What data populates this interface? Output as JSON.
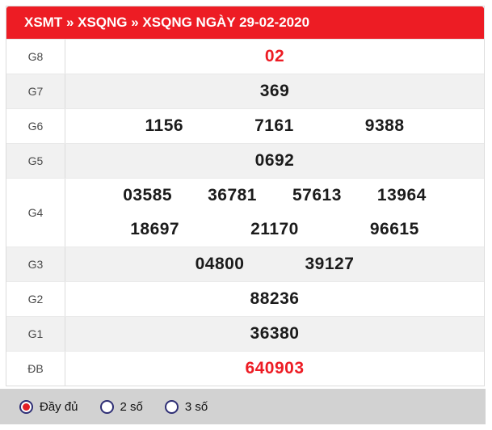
{
  "header": {
    "title": "XSMT » XSQNG » XSQNG NGÀY 29-02-2020"
  },
  "colors": {
    "accent_red": "#ed1c24",
    "alt_row_bg": "#f1f1f1",
    "footer_bg": "#d2d2d2",
    "radio_ring": "#2e2e75",
    "radio_dot": "#e31e25"
  },
  "prizes": [
    {
      "label": "G8",
      "highlight": true,
      "lines": [
        [
          "02"
        ]
      ]
    },
    {
      "label": "G7",
      "highlight": false,
      "lines": [
        [
          "369"
        ]
      ]
    },
    {
      "label": "G6",
      "highlight": false,
      "lines": [
        [
          "1156",
          "7161",
          "9388"
        ]
      ]
    },
    {
      "label": "G5",
      "highlight": false,
      "lines": [
        [
          "0692"
        ]
      ]
    },
    {
      "label": "G4",
      "highlight": false,
      "lines": [
        [
          "03585",
          "36781",
          "57613",
          "13964"
        ],
        [
          "18697",
          "21170",
          "96615"
        ]
      ]
    },
    {
      "label": "G3",
      "highlight": false,
      "lines": [
        [
          "04800",
          "39127"
        ]
      ]
    },
    {
      "label": "G2",
      "highlight": false,
      "lines": [
        [
          "88236"
        ]
      ]
    },
    {
      "label": "G1",
      "highlight": false,
      "lines": [
        [
          "36380"
        ]
      ]
    },
    {
      "label": "ĐB",
      "highlight": true,
      "lines": [
        [
          "640903"
        ]
      ]
    }
  ],
  "footer": {
    "options": [
      {
        "label": "Đầy đủ",
        "selected": true
      },
      {
        "label": "2 số",
        "selected": false
      },
      {
        "label": "3 số",
        "selected": false
      }
    ]
  }
}
